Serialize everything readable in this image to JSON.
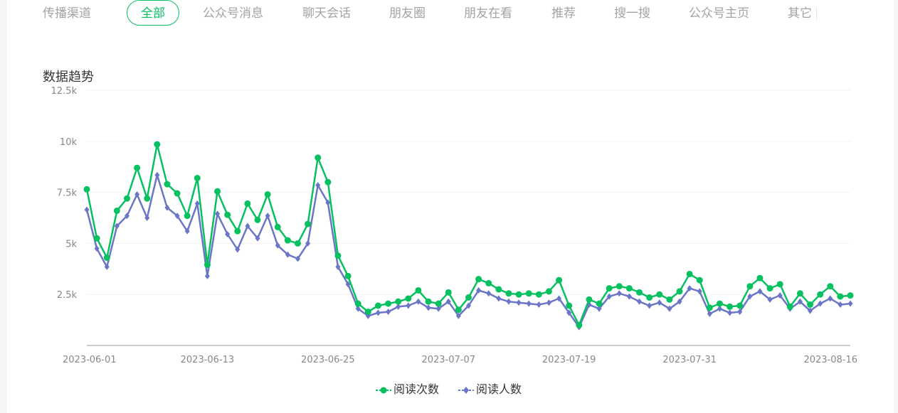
{
  "tabs": [
    {
      "label": "传播渠道",
      "active": false
    },
    {
      "label": "全部",
      "active": true
    },
    {
      "label": "公众号消息",
      "active": false
    },
    {
      "label": "聊天会话",
      "active": false
    },
    {
      "label": "朋友圈",
      "active": false
    },
    {
      "label": "朋友在看",
      "active": false
    },
    {
      "label": "推荐",
      "active": false
    },
    {
      "label": "搜一搜",
      "active": false
    },
    {
      "label": "公众号主页",
      "active": false
    },
    {
      "label": "其它",
      "active": false
    }
  ],
  "section_title": "数据趋势",
  "colors": {
    "series1": "#07c160",
    "series2": "#6b76c6",
    "grid": "#f2f2f2",
    "axis": "#cccccc",
    "tab_active": "#07c160",
    "tab_inactive": "#a3a3a3"
  },
  "chart_data": {
    "type": "line",
    "title": "",
    "xlabel": "",
    "ylabel": "",
    "ylim": [
      0,
      12500
    ],
    "y_ticks": [
      2500,
      5000,
      7500,
      10000,
      12500
    ],
    "y_tick_labels": [
      "2.5k",
      "5k",
      "7.5k",
      "10k",
      "12.5k"
    ],
    "x_tick_labels": [
      "2023-06-01",
      "2023-06-13",
      "2023-06-25",
      "2023-07-07",
      "2023-07-19",
      "2023-07-31",
      "2023-08-16"
    ],
    "grid": true,
    "legend_position": "bottom-center",
    "x": [
      "2023-06-01",
      "2023-06-02",
      "2023-06-03",
      "2023-06-04",
      "2023-06-05",
      "2023-06-06",
      "2023-06-07",
      "2023-06-08",
      "2023-06-09",
      "2023-06-10",
      "2023-06-11",
      "2023-06-12",
      "2023-06-13",
      "2023-06-14",
      "2023-06-15",
      "2023-06-16",
      "2023-06-17",
      "2023-06-18",
      "2023-06-19",
      "2023-06-20",
      "2023-06-21",
      "2023-06-22",
      "2023-06-23",
      "2023-06-24",
      "2023-06-25",
      "2023-06-26",
      "2023-06-27",
      "2023-06-28",
      "2023-06-29",
      "2023-06-30",
      "2023-07-01",
      "2023-07-02",
      "2023-07-03",
      "2023-07-04",
      "2023-07-05",
      "2023-07-06",
      "2023-07-07",
      "2023-07-08",
      "2023-07-09",
      "2023-07-10",
      "2023-07-11",
      "2023-07-12",
      "2023-07-13",
      "2023-07-14",
      "2023-07-15",
      "2023-07-16",
      "2023-07-17",
      "2023-07-18",
      "2023-07-19",
      "2023-07-20",
      "2023-07-21",
      "2023-07-22",
      "2023-07-23",
      "2023-07-24",
      "2023-07-25",
      "2023-07-26",
      "2023-07-27",
      "2023-07-28",
      "2023-07-29",
      "2023-07-30",
      "2023-07-31",
      "2023-08-01",
      "2023-08-02",
      "2023-08-03",
      "2023-08-04",
      "2023-08-05",
      "2023-08-06",
      "2023-08-07",
      "2023-08-08",
      "2023-08-09",
      "2023-08-10",
      "2023-08-11",
      "2023-08-12",
      "2023-08-13",
      "2023-08-14",
      "2023-08-15",
      "2023-08-16"
    ],
    "series": [
      {
        "name": "阅读次数",
        "values": [
          7650,
          5250,
          4300,
          6600,
          7200,
          8700,
          7200,
          9850,
          7900,
          7450,
          6350,
          8200,
          3950,
          7550,
          6400,
          5600,
          6950,
          6150,
          7400,
          5800,
          5150,
          5000,
          5950,
          9200,
          8000,
          4400,
          3400,
          2050,
          1650,
          1950,
          2050,
          2150,
          2300,
          2700,
          2150,
          2050,
          2600,
          1750,
          2350,
          3250,
          3050,
          2750,
          2550,
          2500,
          2550,
          2500,
          2650,
          3200,
          1950,
          1000,
          2250,
          2050,
          2800,
          2900,
          2800,
          2600,
          2350,
          2500,
          2250,
          2650,
          3500,
          3200,
          1850,
          2050,
          1900,
          1950,
          2900,
          3300,
          2800,
          3000,
          1900,
          2550,
          2000,
          2500,
          2900,
          2400,
          2450
        ]
      },
      {
        "name": "阅读人数",
        "values": [
          6650,
          4750,
          3850,
          5850,
          6350,
          7400,
          6250,
          8350,
          6750,
          6350,
          5600,
          6950,
          3400,
          6450,
          5450,
          4700,
          5850,
          5250,
          6350,
          4900,
          4450,
          4250,
          5000,
          7850,
          7000,
          3850,
          3000,
          1800,
          1450,
          1600,
          1650,
          1900,
          1950,
          2150,
          1850,
          1800,
          2150,
          1450,
          1950,
          2700,
          2550,
          2300,
          2150,
          2100,
          2050,
          2000,
          2100,
          2300,
          1600,
          900,
          2000,
          1800,
          2400,
          2550,
          2400,
          2150,
          1950,
          2100,
          1800,
          2150,
          2800,
          2650,
          1550,
          1800,
          1600,
          1650,
          2400,
          2650,
          2250,
          2450,
          1800,
          2150,
          1700,
          2050,
          2300,
          2000,
          2050
        ]
      }
    ]
  }
}
